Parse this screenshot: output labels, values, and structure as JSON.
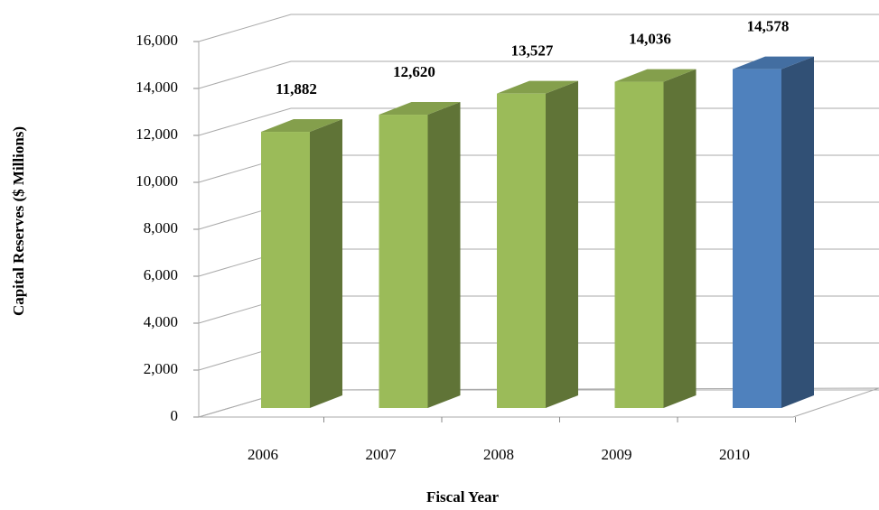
{
  "chart_data": {
    "type": "bar3d",
    "categories": [
      "2006",
      "2007",
      "2008",
      "2009",
      "2010"
    ],
    "values": [
      11882,
      12620,
      13527,
      14036,
      14578
    ],
    "value_labels": [
      "11,882",
      "12,620",
      "13,527",
      "14,036",
      "14,578"
    ],
    "colors": [
      "#9bbb59",
      "#9bbb59",
      "#9bbb59",
      "#9bbb59",
      "#4f81bd"
    ],
    "x_label": "Fiscal Year",
    "y_label": "Capital Reserves ($ Millions)",
    "ylim": [
      0,
      16000
    ],
    "yticks": [
      0,
      {
        "value": 2000,
        "label": "2,000"
      },
      {
        "value": 4000,
        "label": "4,000"
      },
      {
        "value": 6000,
        "label": "6,000"
      },
      {
        "value": 8000,
        "label": "8,000"
      },
      {
        "value": 10000,
        "label": "10,000"
      },
      {
        "value": 12000,
        "label": "12,000"
      },
      {
        "value": 14000,
        "label": "14,000"
      },
      {
        "value": 16000,
        "label": "16,000"
      }
    ],
    "grid": true
  }
}
